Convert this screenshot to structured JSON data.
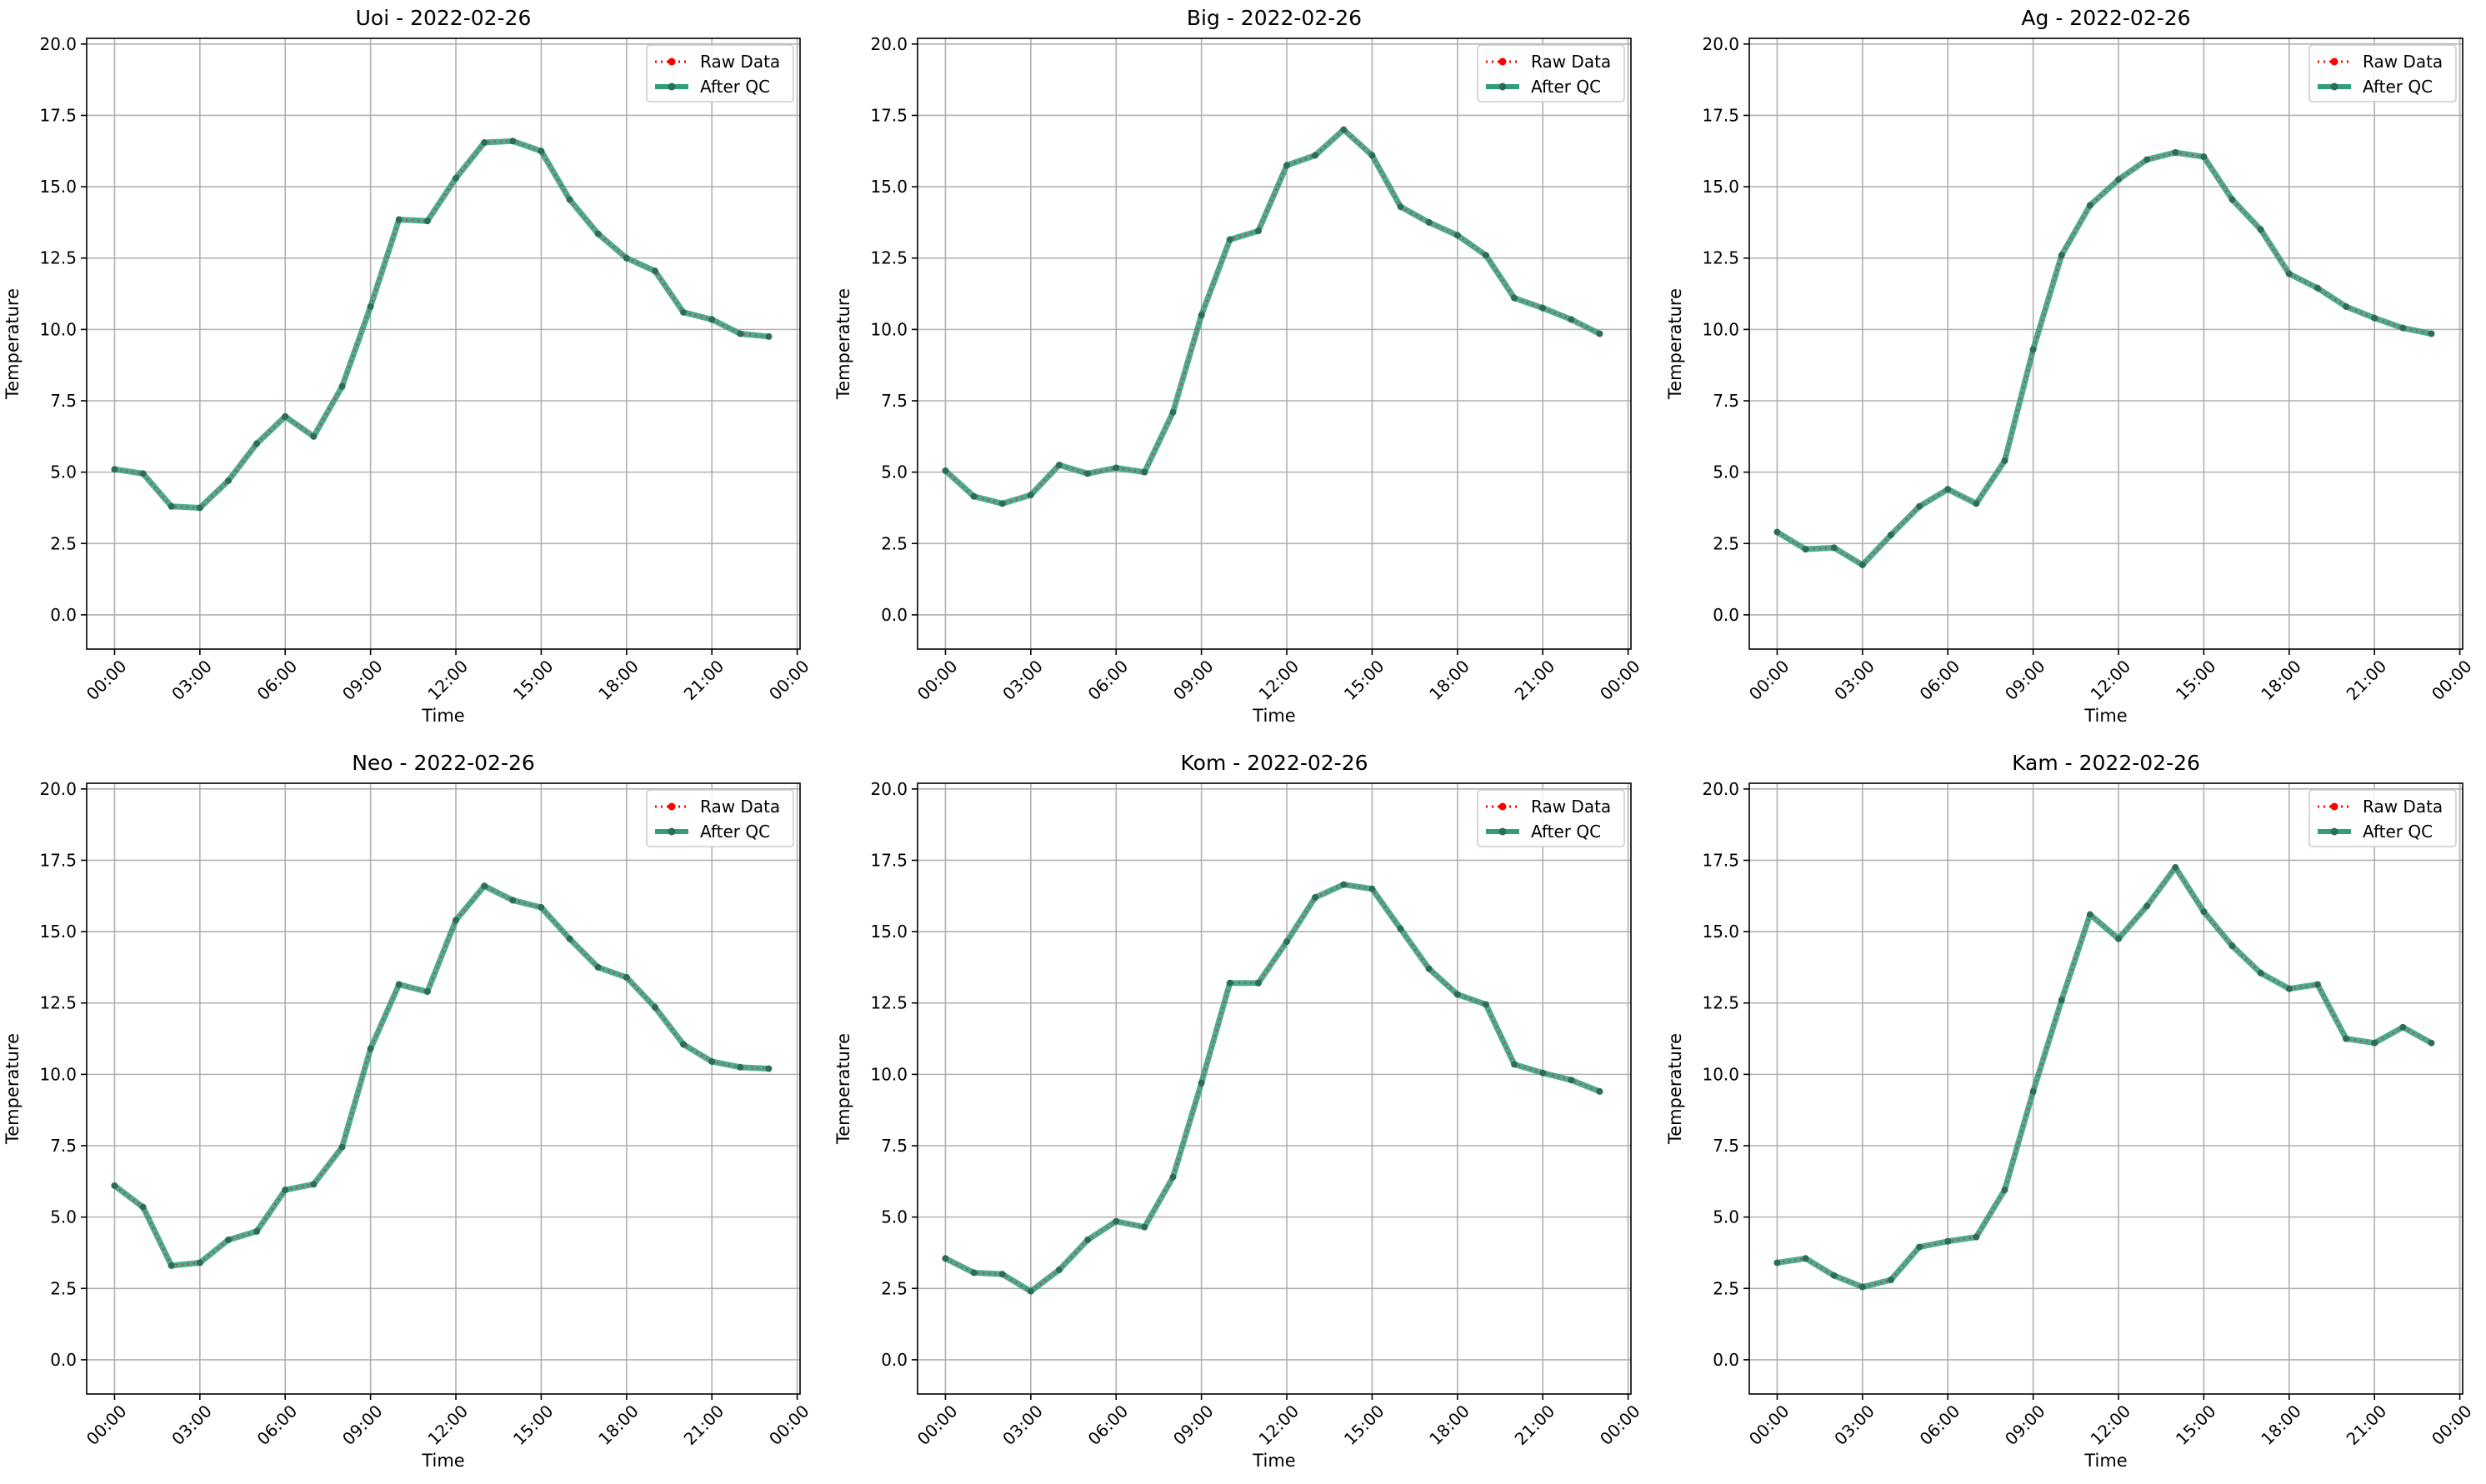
{
  "figure": {
    "background": "#ffffff"
  },
  "legend": {
    "raw_label": "Raw Data",
    "qc_label": "After QC",
    "raw_color": "#ff0000",
    "qc_color": "#2e9e7c",
    "placement": "top-right"
  },
  "chart_data": [
    {
      "type": "line",
      "title": "Uoi - 2022-02-26",
      "xlabel": "Time",
      "ylabel": "Temperature",
      "x": [
        "00:00",
        "01:00",
        "02:00",
        "03:00",
        "04:00",
        "05:00",
        "06:00",
        "07:00",
        "08:00",
        "09:00",
        "10:00",
        "11:00",
        "12:00",
        "13:00",
        "14:00",
        "15:00",
        "16:00",
        "17:00",
        "18:00",
        "19:00",
        "20:00",
        "21:00",
        "22:00",
        "23:00"
      ],
      "xticks": [
        "00:00",
        "03:00",
        "06:00",
        "09:00",
        "12:00",
        "15:00",
        "18:00",
        "21:00",
        "00:00"
      ],
      "yticks": [
        "0.0",
        "2.5",
        "5.0",
        "7.5",
        "10.0",
        "12.5",
        "15.0",
        "17.5",
        "20.0"
      ],
      "ylim": [
        -1.2,
        20.2
      ],
      "grid": true,
      "series": [
        {
          "name": "Raw Data",
          "values": [
            5.1,
            4.95,
            3.8,
            3.75,
            4.7,
            6.0,
            6.95,
            6.25,
            8.0,
            10.8,
            13.85,
            13.8,
            15.3,
            16.55,
            16.6,
            16.25,
            14.55,
            13.35,
            12.5,
            12.05,
            10.6,
            10.35,
            9.85,
            9.75
          ]
        },
        {
          "name": "After QC",
          "values": [
            5.1,
            4.95,
            3.8,
            3.75,
            4.7,
            6.0,
            6.95,
            6.25,
            8.0,
            10.8,
            13.85,
            13.8,
            15.3,
            16.55,
            16.6,
            16.25,
            14.55,
            13.35,
            12.5,
            12.05,
            10.6,
            10.35,
            9.85,
            9.75
          ]
        }
      ]
    },
    {
      "type": "line",
      "title": "Big - 2022-02-26",
      "xlabel": "Time",
      "ylabel": "Temperature",
      "x": [
        "00:00",
        "01:00",
        "02:00",
        "03:00",
        "04:00",
        "05:00",
        "06:00",
        "07:00",
        "08:00",
        "09:00",
        "10:00",
        "11:00",
        "12:00",
        "13:00",
        "14:00",
        "15:00",
        "16:00",
        "17:00",
        "18:00",
        "19:00",
        "20:00",
        "21:00",
        "22:00",
        "23:00"
      ],
      "xticks": [
        "00:00",
        "03:00",
        "06:00",
        "09:00",
        "12:00",
        "15:00",
        "18:00",
        "21:00",
        "00:00"
      ],
      "yticks": [
        "0.0",
        "2.5",
        "5.0",
        "7.5",
        "10.0",
        "12.5",
        "15.0",
        "17.5",
        "20.0"
      ],
      "ylim": [
        -1.2,
        20.2
      ],
      "grid": true,
      "series": [
        {
          "name": "Raw Data",
          "values": [
            5.05,
            4.15,
            3.9,
            4.2,
            5.25,
            4.95,
            5.15,
            5.0,
            7.1,
            10.5,
            13.15,
            13.45,
            15.75,
            16.1,
            17.0,
            16.1,
            14.3,
            13.75,
            13.3,
            12.6,
            11.1,
            10.75,
            10.35,
            9.85
          ]
        },
        {
          "name": "After QC",
          "values": [
            5.05,
            4.15,
            3.9,
            4.2,
            5.25,
            4.95,
            5.15,
            5.0,
            7.1,
            10.5,
            13.15,
            13.45,
            15.75,
            16.1,
            17.0,
            16.1,
            14.3,
            13.75,
            13.3,
            12.6,
            11.1,
            10.75,
            10.35,
            9.85
          ]
        }
      ]
    },
    {
      "type": "line",
      "title": "Ag - 2022-02-26",
      "xlabel": "Time",
      "ylabel": "Temperature",
      "x": [
        "00:00",
        "01:00",
        "02:00",
        "03:00",
        "04:00",
        "05:00",
        "06:00",
        "07:00",
        "08:00",
        "09:00",
        "10:00",
        "11:00",
        "12:00",
        "13:00",
        "14:00",
        "15:00",
        "16:00",
        "17:00",
        "18:00",
        "19:00",
        "20:00",
        "21:00",
        "22:00",
        "23:00"
      ],
      "xticks": [
        "00:00",
        "03:00",
        "06:00",
        "09:00",
        "12:00",
        "15:00",
        "18:00",
        "21:00",
        "00:00"
      ],
      "yticks": [
        "0.0",
        "2.5",
        "5.0",
        "7.5",
        "10.0",
        "12.5",
        "15.0",
        "17.5",
        "20.0"
      ],
      "ylim": [
        -1.2,
        20.2
      ],
      "grid": true,
      "series": [
        {
          "name": "Raw Data",
          "values": [
            2.9,
            2.3,
            2.35,
            1.75,
            2.8,
            3.8,
            4.4,
            3.9,
            5.4,
            9.3,
            12.6,
            14.35,
            15.25,
            15.95,
            16.2,
            16.05,
            14.55,
            13.5,
            11.95,
            11.45,
            10.8,
            10.4,
            10.05,
            9.85
          ]
        },
        {
          "name": "After QC",
          "values": [
            2.9,
            2.3,
            2.35,
            1.75,
            2.8,
            3.8,
            4.4,
            3.9,
            5.4,
            9.3,
            12.6,
            14.35,
            15.25,
            15.95,
            16.2,
            16.05,
            14.55,
            13.5,
            11.95,
            11.45,
            10.8,
            10.4,
            10.05,
            9.85
          ]
        }
      ]
    },
    {
      "type": "line",
      "title": "Neo - 2022-02-26",
      "xlabel": "Time",
      "ylabel": "Temperature",
      "x": [
        "00:00",
        "01:00",
        "02:00",
        "03:00",
        "04:00",
        "05:00",
        "06:00",
        "07:00",
        "08:00",
        "09:00",
        "10:00",
        "11:00",
        "12:00",
        "13:00",
        "14:00",
        "15:00",
        "16:00",
        "17:00",
        "18:00",
        "19:00",
        "20:00",
        "21:00",
        "22:00",
        "23:00"
      ],
      "xticks": [
        "00:00",
        "03:00",
        "06:00",
        "09:00",
        "12:00",
        "15:00",
        "18:00",
        "21:00",
        "00:00"
      ],
      "yticks": [
        "0.0",
        "2.5",
        "5.0",
        "7.5",
        "10.0",
        "12.5",
        "15.0",
        "17.5",
        "20.0"
      ],
      "ylim": [
        -1.2,
        20.2
      ],
      "grid": true,
      "series": [
        {
          "name": "Raw Data",
          "values": [
            6.1,
            5.35,
            3.3,
            3.4,
            4.2,
            4.5,
            5.95,
            6.15,
            7.45,
            10.9,
            13.15,
            12.9,
            15.4,
            16.6,
            16.1,
            15.85,
            14.75,
            13.75,
            13.4,
            12.35,
            11.05,
            10.45,
            10.25,
            10.2
          ]
        },
        {
          "name": "After QC",
          "values": [
            6.1,
            5.35,
            3.3,
            3.4,
            4.2,
            4.5,
            5.95,
            6.15,
            7.45,
            10.9,
            13.15,
            12.9,
            15.4,
            16.6,
            16.1,
            15.85,
            14.75,
            13.75,
            13.4,
            12.35,
            11.05,
            10.45,
            10.25,
            10.2
          ]
        }
      ]
    },
    {
      "type": "line",
      "title": "Kom - 2022-02-26",
      "xlabel": "Time",
      "ylabel": "Temperature",
      "x": [
        "00:00",
        "01:00",
        "02:00",
        "03:00",
        "04:00",
        "05:00",
        "06:00",
        "07:00",
        "08:00",
        "09:00",
        "10:00",
        "11:00",
        "12:00",
        "13:00",
        "14:00",
        "15:00",
        "16:00",
        "17:00",
        "18:00",
        "19:00",
        "20:00",
        "21:00",
        "22:00",
        "23:00"
      ],
      "xticks": [
        "00:00",
        "03:00",
        "06:00",
        "09:00",
        "12:00",
        "15:00",
        "18:00",
        "21:00",
        "00:00"
      ],
      "yticks": [
        "0.0",
        "2.5",
        "5.0",
        "7.5",
        "10.0",
        "12.5",
        "15.0",
        "17.5",
        "20.0"
      ],
      "ylim": [
        -1.2,
        20.2
      ],
      "grid": true,
      "series": [
        {
          "name": "Raw Data",
          "values": [
            3.55,
            3.05,
            3.0,
            2.4,
            3.15,
            4.2,
            4.85,
            4.65,
            6.4,
            9.7,
            13.2,
            13.2,
            14.65,
            16.2,
            16.65,
            16.5,
            15.1,
            13.7,
            12.8,
            12.45,
            10.35,
            10.05,
            9.8,
            9.4
          ]
        },
        {
          "name": "After QC",
          "values": [
            3.55,
            3.05,
            3.0,
            2.4,
            3.15,
            4.2,
            4.85,
            4.65,
            6.4,
            9.7,
            13.2,
            13.2,
            14.65,
            16.2,
            16.65,
            16.5,
            15.1,
            13.7,
            12.8,
            12.45,
            10.35,
            10.05,
            9.8,
            9.4
          ]
        }
      ]
    },
    {
      "type": "line",
      "title": "Kam - 2022-02-26",
      "xlabel": "Time",
      "ylabel": "Temperature",
      "x": [
        "00:00",
        "01:00",
        "02:00",
        "03:00",
        "04:00",
        "05:00",
        "06:00",
        "07:00",
        "08:00",
        "09:00",
        "10:00",
        "11:00",
        "12:00",
        "13:00",
        "14:00",
        "15:00",
        "16:00",
        "17:00",
        "18:00",
        "19:00",
        "20:00",
        "21:00",
        "22:00",
        "23:00"
      ],
      "xticks": [
        "00:00",
        "03:00",
        "06:00",
        "09:00",
        "12:00",
        "15:00",
        "18:00",
        "21:00",
        "00:00"
      ],
      "yticks": [
        "0.0",
        "2.5",
        "5.0",
        "7.5",
        "10.0",
        "12.5",
        "15.0",
        "17.5",
        "20.0"
      ],
      "ylim": [
        -1.2,
        20.2
      ],
      "grid": true,
      "series": [
        {
          "name": "Raw Data",
          "values": [
            3.4,
            3.55,
            2.95,
            2.55,
            2.8,
            3.95,
            4.15,
            4.3,
            5.95,
            9.4,
            12.6,
            15.6,
            14.75,
            15.9,
            17.25,
            15.7,
            14.5,
            13.55,
            13.0,
            13.15,
            11.25,
            11.1,
            11.65,
            11.1
          ]
        },
        {
          "name": "After QC",
          "values": [
            3.4,
            3.55,
            2.95,
            2.55,
            2.8,
            3.95,
            4.15,
            4.3,
            5.95,
            9.4,
            12.6,
            15.6,
            14.75,
            15.9,
            17.25,
            15.7,
            14.5,
            13.55,
            13.0,
            13.15,
            11.25,
            11.1,
            11.65,
            11.1
          ]
        }
      ]
    }
  ]
}
